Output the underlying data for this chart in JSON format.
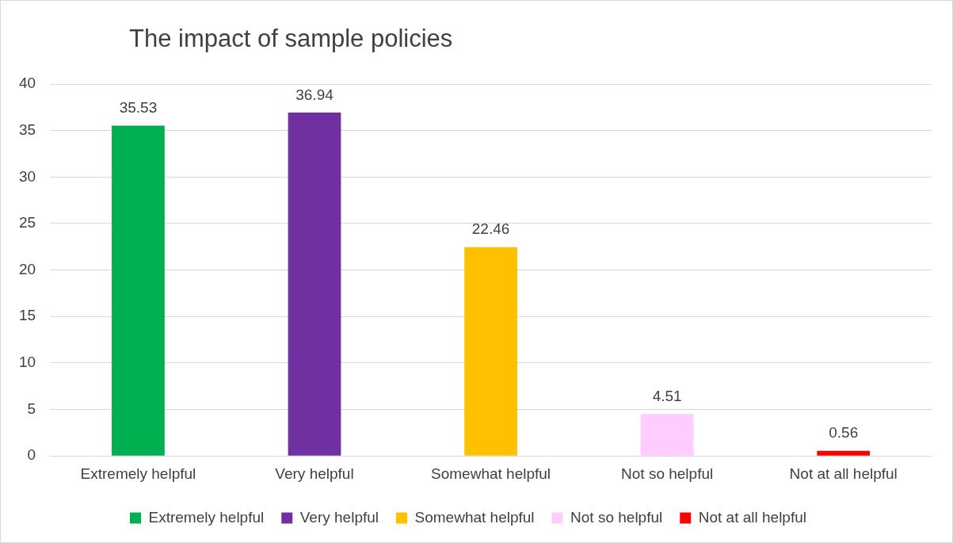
{
  "chart_data": {
    "type": "bar",
    "title": "The impact of sample policies",
    "categories": [
      "Extremely helpful",
      "Very helpful",
      "Somewhat helpful",
      "Not so helpful",
      "Not at all helpful"
    ],
    "series": [
      {
        "name": "Extremely helpful",
        "color": "#00b050",
        "values": [
          35.53,
          null,
          null,
          null,
          null
        ]
      },
      {
        "name": "Very helpful",
        "color": "#7030a0",
        "values": [
          null,
          36.94,
          null,
          null,
          null
        ]
      },
      {
        "name": "Somewhat helpful",
        "color": "#ffc000",
        "values": [
          null,
          null,
          22.46,
          null,
          null
        ]
      },
      {
        "name": "Not so helpful",
        "color": "#ffccff",
        "values": [
          null,
          null,
          null,
          4.51,
          null
        ]
      },
      {
        "name": "Not at all helpful",
        "color": "#ff0000",
        "values": [
          null,
          null,
          null,
          null,
          0.56
        ]
      }
    ],
    "ylim": [
      0,
      40
    ],
    "yticks": [
      0,
      5,
      10,
      15,
      20,
      25,
      30,
      35,
      40
    ],
    "grid": "y",
    "legend": "bottom",
    "data_labels": true
  }
}
